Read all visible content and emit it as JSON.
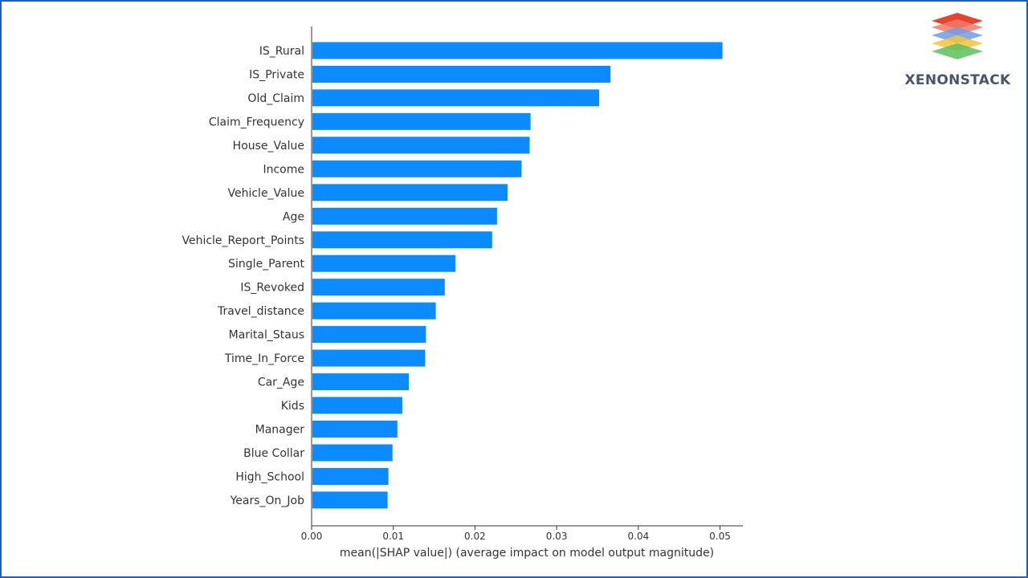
{
  "brand": {
    "name": "XENONSTACK",
    "colors": [
      "#e8432e",
      "#f07a6a",
      "#6f9ee8",
      "#f2c33c",
      "#5cbf5a"
    ]
  },
  "chart_data": {
    "type": "bar",
    "orientation": "horizontal",
    "bar_color": "#0c8aff",
    "categories": [
      "IS_Rural",
      "IS_Private",
      "Old_Claim",
      "Claim_Frequency",
      "House_Value",
      "Income",
      "Vehicle_Value",
      "Age",
      "Vehicle_Report_Points",
      "Single_Parent",
      "IS_Revoked",
      "Travel_distance",
      "Marital_Staus",
      "Time_In_Force",
      "Car_Age",
      "Kids",
      "Manager",
      "Blue Collar",
      "High_School",
      "Years_On_Job"
    ],
    "values": [
      0.0502,
      0.0365,
      0.0351,
      0.0267,
      0.0266,
      0.0256,
      0.0239,
      0.0226,
      0.022,
      0.0175,
      0.0162,
      0.0151,
      0.0139,
      0.0138,
      0.0118,
      0.011,
      0.0104,
      0.0098,
      0.0093,
      0.0092
    ],
    "xlabel": "mean(|SHAP value|) (average impact on model output magnitude)",
    "ylabel": "",
    "xlim": [
      0.0,
      0.0528
    ],
    "xticks": [
      0.0,
      0.01,
      0.02,
      0.03,
      0.04,
      0.05
    ],
    "xtick_labels": [
      "0.00",
      "0.01",
      "0.02",
      "0.03",
      "0.04",
      "0.05"
    ],
    "grid": false,
    "legend": "none"
  }
}
